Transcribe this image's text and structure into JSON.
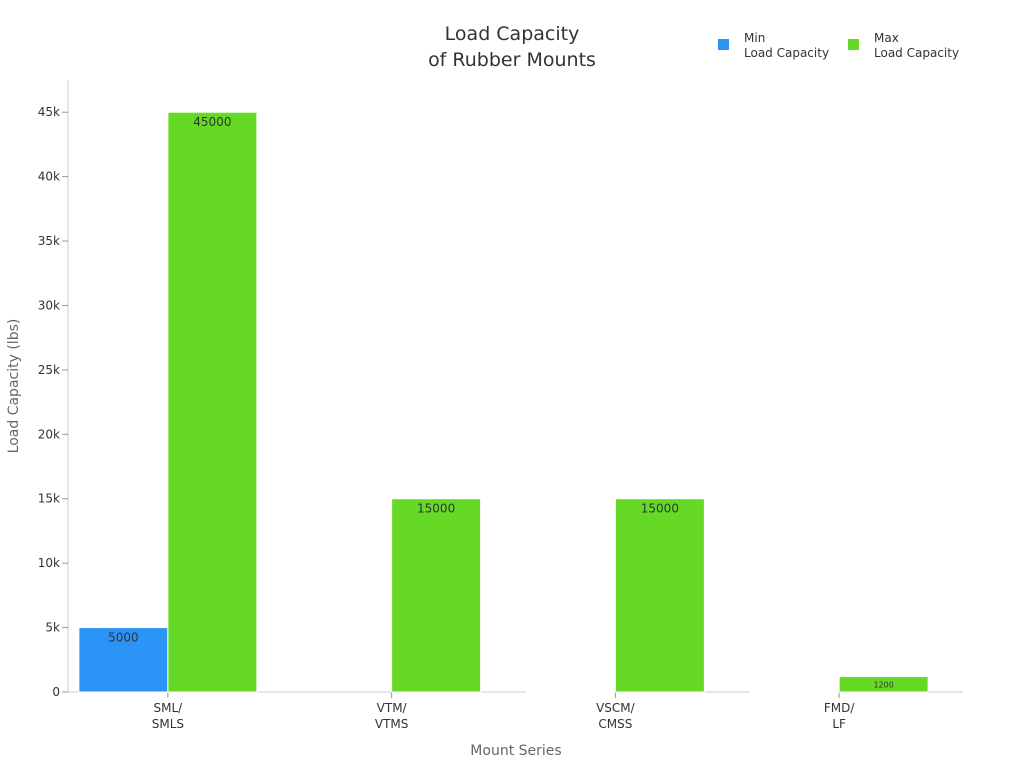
{
  "chart_data": {
    "type": "bar",
    "title_lines": [
      "Load Capacity",
      "of Rubber Mounts"
    ],
    "xlabel": "Mount Series",
    "ylabel": "Load Capacity (lbs)",
    "categories": [
      [
        "SML/",
        "SMLS"
      ],
      [
        "VTM/",
        "VTMS"
      ],
      [
        "VSCM/",
        "CMSS"
      ],
      [
        "FMD/",
        "LF"
      ]
    ],
    "series": [
      {
        "name_lines": [
          "Min",
          "Load Capacity"
        ],
        "color": "#2d94f7",
        "values": [
          5000,
          0,
          3,
          5
        ],
        "labels": [
          "5000",
          "",
          "",
          ""
        ]
      },
      {
        "name_lines": [
          "Max",
          "Load Capacity"
        ],
        "color": "#66d926",
        "values": [
          45000,
          15000,
          15000,
          1200
        ],
        "labels": [
          "45000",
          "15000",
          "15000",
          "1200"
        ]
      }
    ],
    "ylim": [
      0,
      47500
    ],
    "yticks": [
      0,
      5000,
      10000,
      15000,
      20000,
      25000,
      30000,
      35000,
      40000,
      45000
    ],
    "ytick_labels": [
      "0",
      "5k",
      "10k",
      "15k",
      "20k",
      "25k",
      "30k",
      "35k",
      "40k",
      "45k"
    ],
    "legend_position": "top-right",
    "grid": false
  }
}
